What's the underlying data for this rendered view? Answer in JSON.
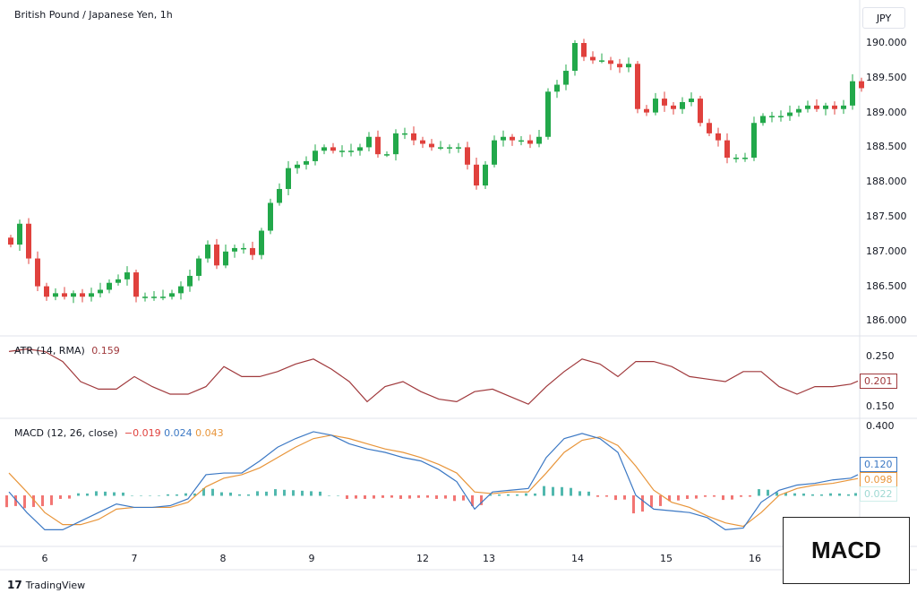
{
  "title": "British Pound / Japanese Yen, 1h",
  "currency": "JPY",
  "overlay_label": "MACD",
  "brand": "TradingView",
  "colors": {
    "up": "#22a84a",
    "down": "#e0413d",
    "atr": "#a0393c",
    "macd": "#3b78c4",
    "signal": "#e8953a",
    "hist_up": "#26a69a",
    "hist_down": "#ef5350"
  },
  "chart_data": [
    {
      "type": "candlestick",
      "title": "British Pound / Japanese Yen, 1h",
      "ylim": [
        186.0,
        190.0
      ],
      "y_ticks": [
        "190.000",
        "189.500",
        "189.000",
        "188.500",
        "188.000",
        "187.500",
        "187.000",
        "186.500",
        "186.000"
      ],
      "x_ticks": [
        {
          "label": "6",
          "bar": 3.8
        },
        {
          "label": "7",
          "bar": 13.8
        },
        {
          "label": "8",
          "bar": 23.7
        },
        {
          "label": "9",
          "bar": 33.6
        },
        {
          "label": "12",
          "bar": 46
        },
        {
          "label": "13",
          "bar": 53.4
        },
        {
          "label": "14",
          "bar": 63.3
        },
        {
          "label": "15",
          "bar": 73.2
        },
        {
          "label": "16",
          "bar": 83.1
        }
      ],
      "close": [
        187.1,
        187.4,
        186.9,
        186.5,
        186.35,
        186.4,
        186.35,
        186.4,
        186.35,
        186.4,
        186.45,
        186.55,
        186.6,
        186.7,
        186.35,
        186.35,
        186.35,
        186.35,
        186.4,
        186.5,
        186.65,
        186.9,
        187.1,
        186.8,
        187.0,
        187.05,
        187.05,
        186.95,
        187.3,
        187.7,
        187.9,
        188.2,
        188.25,
        188.3,
        188.45,
        188.5,
        188.45,
        188.45,
        188.45,
        188.5,
        188.65,
        188.4,
        188.4,
        188.7,
        188.7,
        188.6,
        188.55,
        188.5,
        188.5,
        188.5,
        188.5,
        188.25,
        187.95,
        188.25,
        188.6,
        188.65,
        188.6,
        188.6,
        188.55,
        188.65,
        189.3,
        189.4,
        189.6,
        190.0,
        189.8,
        189.75,
        189.75,
        189.7,
        189.65,
        189.7,
        189.05,
        189.0,
        189.2,
        189.1,
        189.05,
        189.15,
        189.2,
        188.85,
        188.7,
        188.6,
        188.35,
        188.35,
        188.35,
        188.85,
        188.95,
        188.95,
        188.95,
        189.0,
        189.05,
        189.1,
        189.05,
        189.1,
        189.05,
        189.1,
        189.45,
        189.35
      ]
    },
    {
      "type": "line",
      "title": "ATR (14, RMA)",
      "last_value": "0.159",
      "ylim": [
        0.13,
        0.27
      ],
      "y_ticks": [
        "0.250",
        "0.150"
      ],
      "current_tag": "0.201",
      "values": [
        0.26,
        0.265,
        0.26,
        0.24,
        0.2,
        0.185,
        0.185,
        0.21,
        0.19,
        0.175,
        0.175,
        0.19,
        0.23,
        0.21,
        0.21,
        0.22,
        0.235,
        0.245,
        0.225,
        0.2,
        0.16,
        0.19,
        0.2,
        0.18,
        0.165,
        0.16,
        0.18,
        0.185,
        0.17,
        0.155,
        0.19,
        0.22,
        0.245,
        0.235,
        0.21,
        0.24,
        0.24,
        0.23,
        0.21,
        0.205,
        0.2,
        0.22,
        0.22,
        0.19,
        0.175,
        0.19,
        0.19,
        0.195,
        0.201
      ]
    },
    {
      "type": "line",
      "title": "MACD (12, 26, close)",
      "legend_values": [
        "−0.019",
        "0.024",
        "0.043"
      ],
      "y_ticks": [
        "0.400"
      ],
      "tags": {
        "macd": "0.120",
        "signal": "0.098",
        "histogram": "0.022"
      },
      "series": [
        {
          "name": "MACD",
          "values": [
            0.02,
            -0.1,
            -0.2,
            -0.2,
            -0.15,
            -0.1,
            -0.05,
            -0.07,
            -0.07,
            -0.06,
            -0.02,
            0.12,
            0.13,
            0.13,
            0.2,
            0.28,
            0.33,
            0.37,
            0.35,
            0.3,
            0.27,
            0.25,
            0.22,
            0.2,
            0.15,
            0.08,
            -0.08,
            0.02,
            0.03,
            0.04,
            0.22,
            0.33,
            0.36,
            0.33,
            0.25,
            0.0,
            -0.08,
            -0.09,
            -0.1,
            -0.13,
            -0.2,
            -0.19,
            -0.04,
            0.03,
            0.06,
            0.07,
            0.09,
            0.1,
            0.12
          ]
        },
        {
          "name": "Signal",
          "values": [
            0.13,
            0.02,
            -0.1,
            -0.17,
            -0.17,
            -0.14,
            -0.08,
            -0.07,
            -0.07,
            -0.07,
            -0.04,
            0.05,
            0.1,
            0.12,
            0.16,
            0.22,
            0.28,
            0.33,
            0.35,
            0.33,
            0.3,
            0.27,
            0.25,
            0.22,
            0.18,
            0.13,
            0.02,
            0.01,
            0.02,
            0.02,
            0.13,
            0.25,
            0.32,
            0.34,
            0.29,
            0.17,
            0.03,
            -0.04,
            -0.07,
            -0.12,
            -0.16,
            -0.18,
            -0.1,
            0.0,
            0.04,
            0.06,
            0.07,
            0.09,
            0.098
          ]
        }
      ]
    }
  ]
}
